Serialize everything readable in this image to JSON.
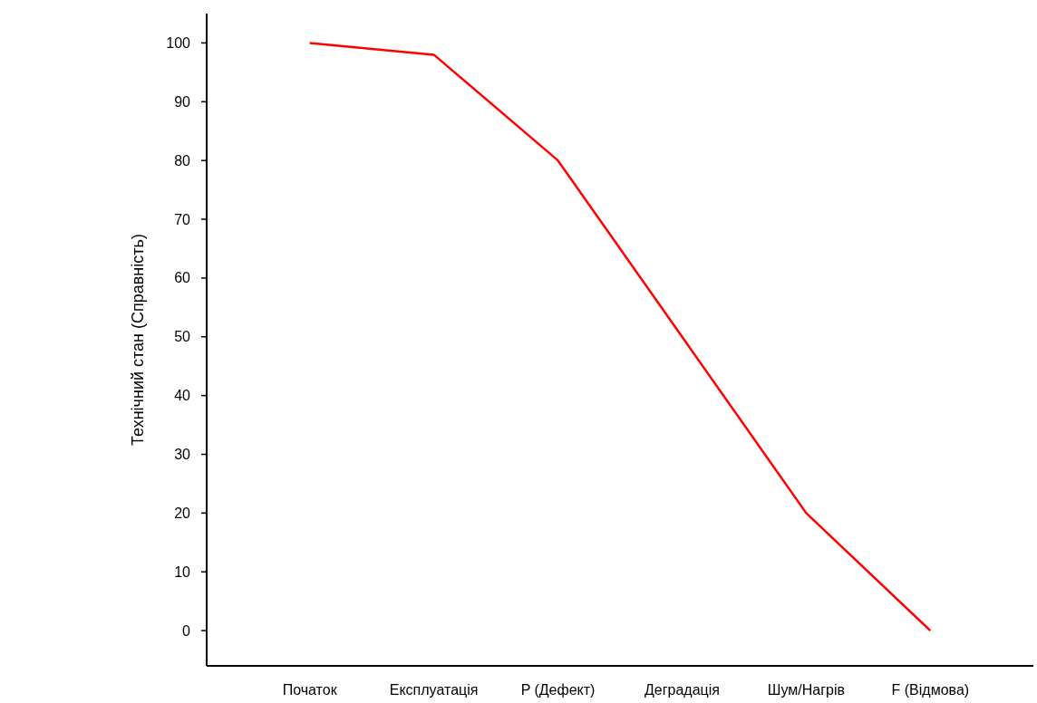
{
  "chart_data": {
    "type": "line",
    "ylabel": "Технічний стан (Справність)",
    "categories": [
      "Початок",
      "Експлуатація",
      "P (Дефект)",
      "Деградація",
      "Шум/Нагрів",
      "F (Відмова)"
    ],
    "series": [
      {
        "color": "#ff0000",
        "values": [
          100,
          98,
          80,
          50,
          20,
          0
        ]
      }
    ],
    "ylim": [
      -6,
      105
    ],
    "yticks": [
      0,
      10,
      20,
      30,
      40,
      50,
      60,
      70,
      80,
      90,
      100
    ],
    "grid": false,
    "marker": "none",
    "line_style": "solid"
  }
}
